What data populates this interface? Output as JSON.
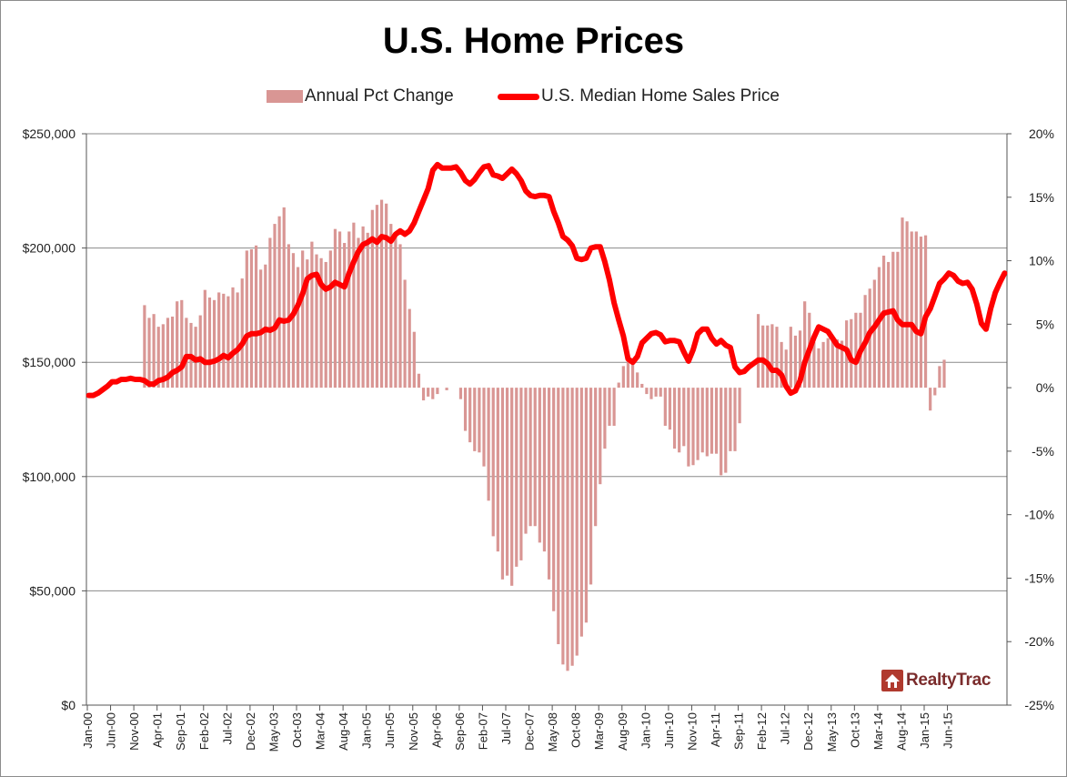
{
  "chart_data": {
    "type": "bar+line",
    "title": "U.S. Home Prices",
    "left_axis": {
      "ylim": [
        0,
        250000
      ],
      "ticks": [
        "$0",
        "$50,000",
        "$100,000",
        "$150,000",
        "$200,000",
        "$250,000"
      ]
    },
    "right_axis": {
      "ylim": [
        -25,
        20
      ],
      "ticks": [
        "-25%",
        "-20%",
        "-15%",
        "-10%",
        "-5%",
        "0%",
        "5%",
        "10%",
        "15%",
        "20%"
      ]
    },
    "x_tick_labels": [
      "Jan-00",
      "Jun-00",
      "Nov-00",
      "Apr-01",
      "Sep-01",
      "Feb-02",
      "Jul-02",
      "Dec-02",
      "May-03",
      "Oct-03",
      "Mar-04",
      "Aug-04",
      "Jan-05",
      "Jun-05",
      "Nov-05",
      "Apr-06",
      "Sep-06",
      "Feb-07",
      "Jul-07",
      "Dec-07",
      "May-08",
      "Oct-08",
      "Mar-09",
      "Aug-09",
      "Jan-10",
      "Jun-10",
      "Nov-10",
      "Apr-11",
      "Sep-11",
      "Feb-12",
      "Jul-12",
      "Dec-12",
      "May-13",
      "Oct-13",
      "Mar-14",
      "Aug-14",
      "Jan-15",
      "Jun-15"
    ],
    "legend_position": "top-center",
    "grid": true,
    "series": [
      {
        "name": "Annual Pct Change",
        "type": "bar",
        "axis": "right",
        "color": "#d99694",
        "start": "Jan-00",
        "values": [
          null,
          null,
          null,
          null,
          null,
          null,
          null,
          null,
          null,
          null,
          null,
          null,
          6.5,
          5.5,
          5.8,
          4.8,
          5,
          5.5,
          5.6,
          6.8,
          6.9,
          5.5,
          5.1,
          4.8,
          5.7,
          7.7,
          7.1,
          6.9,
          7.5,
          7.4,
          7.2,
          7.9,
          7.5,
          8.6,
          10.8,
          10.9,
          11.2,
          9.3,
          9.7,
          11.8,
          12.9,
          13.5,
          14.2,
          11.3,
          10.6,
          9.5,
          10.8,
          10.1,
          11.5,
          10.5,
          10.2,
          9.9,
          10.8,
          12.5,
          12.3,
          11.4,
          12.3,
          13,
          11.8,
          12.7,
          12.2,
          14,
          14.4,
          14.8,
          14.5,
          12.9,
          11.9,
          11.3,
          8.5,
          6.2,
          4.4,
          1.1,
          -1,
          -0.7,
          -0.9,
          -0.5,
          null,
          -0.2,
          null,
          null,
          -0.9,
          -3.4,
          -4.3,
          -5,
          -5.1,
          -6.2,
          -8.9,
          -11.7,
          -12.9,
          -15.1,
          -14.8,
          -15.6,
          -14.1,
          -13.6,
          -11.5,
          -10.9,
          -10.9,
          -12.2,
          -12.9,
          -15.1,
          -17.6,
          -20.2,
          -21.8,
          -22.3,
          -21.9,
          -21.1,
          -19.6,
          -18.5,
          -15.5,
          -10.9,
          -7.6,
          -4.8,
          -3,
          -3,
          0.4,
          1.7,
          2.5,
          2.1,
          1.2,
          0.3,
          -0.5,
          -0.9,
          -0.7,
          -0.7,
          -3,
          -3.3,
          -4.8,
          -5.1,
          -4.6,
          -6.2,
          -6.1,
          -5.7,
          -5.1,
          -5.4,
          -5.2,
          -5.2,
          -6.9,
          -6.7,
          -5,
          -5,
          -2.8,
          null,
          null,
          null,
          5.8,
          4.9,
          4.9,
          5,
          4.8,
          3.6,
          3,
          4.8,
          4.1,
          4.5,
          6.8,
          5.9,
          3.6,
          3.1,
          3.6,
          3.9,
          4.1,
          3.8,
          3.7,
          5.3,
          5.4,
          5.9,
          5.9,
          7.3,
          7.8,
          8.5,
          9.5,
          10.4,
          9.9,
          10.7,
          10.7,
          13.4,
          13.1,
          12.3,
          12.3,
          11.9,
          12,
          -1.8,
          -0.6,
          1.7,
          2.2
        ]
      },
      {
        "name": "U.S. Median Home Sales Price",
        "type": "line",
        "axis": "left",
        "color": "#ff0000",
        "start": "Jan-00",
        "values": [
          135500,
          135500,
          136500,
          138000,
          139500,
          141500,
          141500,
          142500,
          142500,
          143000,
          142500,
          142500,
          142000,
          140500,
          140500,
          142000,
          142500,
          143500,
          145500,
          146500,
          148000,
          152500,
          152500,
          151000,
          151500,
          150000,
          150000,
          150500,
          151500,
          153000,
          152000,
          154000,
          155500,
          158000,
          161500,
          162500,
          162500,
          163000,
          164500,
          164000,
          165000,
          168500,
          168000,
          168500,
          171000,
          175000,
          180000,
          186500,
          188000,
          188500,
          184000,
          182000,
          183000,
          185000,
          184000,
          183000,
          189000,
          194000,
          198500,
          201500,
          202500,
          204000,
          202500,
          205000,
          204500,
          203000,
          206000,
          207500,
          206000,
          207500,
          211000,
          216000,
          221000,
          226000,
          234000,
          236500,
          235000,
          235000,
          235000,
          235500,
          233000,
          229500,
          228000,
          230000,
          233000,
          235500,
          236000,
          232000,
          231500,
          230500,
          232500,
          234500,
          232500,
          229500,
          225000,
          223000,
          222500,
          223000,
          223000,
          222500,
          216000,
          211000,
          205000,
          203500,
          201000,
          195500,
          195000,
          195500,
          200000,
          200500,
          200500,
          194000,
          186000,
          176000,
          168500,
          161500,
          151500,
          150000,
          152500,
          158500,
          160500,
          162500,
          163000,
          162000,
          159000,
          159500,
          159500,
          159000,
          154500,
          150500,
          155500,
          162500,
          164500,
          164500,
          160500,
          158000,
          159500,
          157500,
          156500,
          148000,
          145500,
          146000,
          148000,
          149500,
          151000,
          151000,
          149500,
          146500,
          146500,
          144500,
          139500,
          136500,
          137500,
          142000,
          150000,
          155500,
          161000,
          165500,
          164500,
          163500,
          160500,
          157500,
          156500,
          155500,
          151000,
          150000,
          155000,
          158500,
          163000,
          165500,
          168500,
          171500,
          172000,
          172500,
          168500,
          166500,
          166500,
          166500,
          163500,
          162500,
          170000,
          173500,
          179000,
          184500,
          186500,
          189000,
          188000,
          185500,
          184500,
          185000,
          182000,
          175500,
          167000,
          164500,
          173500,
          180500,
          185000,
          189000
        ]
      }
    ]
  },
  "logo_text": "RealtyTrac"
}
